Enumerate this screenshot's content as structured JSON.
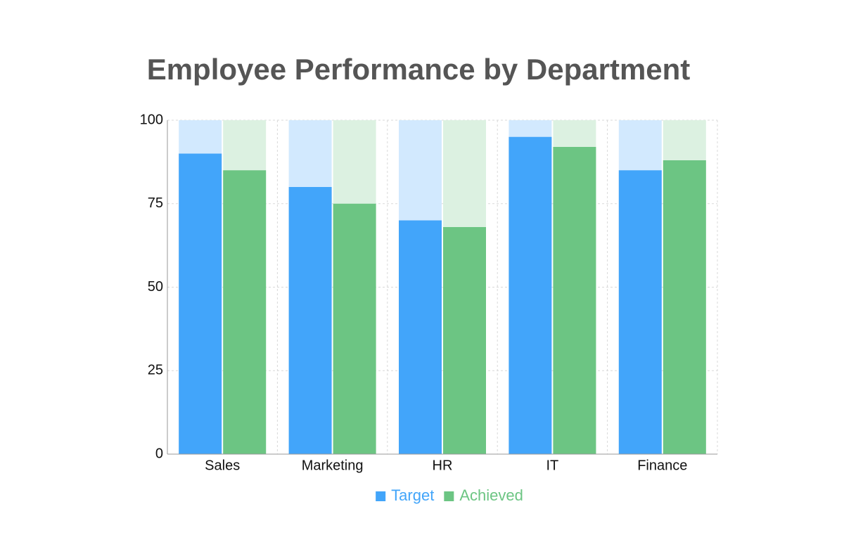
{
  "chart_data": {
    "type": "bar",
    "title": "Employee Performance by Department",
    "categories": [
      "Sales",
      "Marketing",
      "HR",
      "IT",
      "Finance"
    ],
    "series": [
      {
        "name": "Target",
        "color": "#42a5fa",
        "values": [
          90,
          80,
          70,
          95,
          85
        ]
      },
      {
        "name": "Achieved",
        "color": "#6cc583",
        "values": [
          85,
          75,
          68,
          92,
          88
        ]
      }
    ],
    "ylim": [
      0,
      100
    ],
    "yticks": [
      0,
      25,
      50,
      75,
      100
    ],
    "grid": true,
    "legend": "bottom"
  }
}
